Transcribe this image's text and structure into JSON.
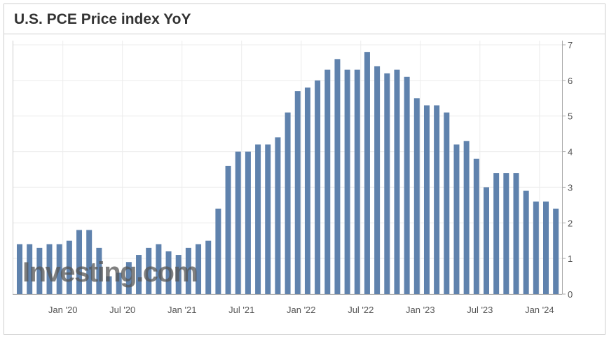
{
  "chart_data": {
    "type": "bar",
    "title": "U.S. PCE Price index YoY",
    "watermark": "Investing.com",
    "categories": [
      null,
      null,
      null,
      null,
      "Jan '20",
      null,
      null,
      null,
      null,
      null,
      "Jul '20",
      null,
      null,
      null,
      null,
      null,
      "Jan '21",
      null,
      null,
      null,
      null,
      null,
      "Jul '21",
      null,
      null,
      null,
      null,
      null,
      "Jan '22",
      null,
      null,
      null,
      null,
      null,
      "Jul '22",
      null,
      null,
      null,
      null,
      null,
      "Jan '23",
      null,
      null,
      null,
      null,
      null,
      "Jul '23",
      null,
      null,
      null,
      null,
      null,
      "Jan '24",
      null,
      null
    ],
    "values": [
      1.4,
      1.4,
      1.3,
      1.4,
      1.4,
      1.5,
      1.8,
      1.8,
      1.3,
      0.5,
      0.6,
      0.9,
      1.1,
      1.3,
      1.4,
      1.2,
      1.1,
      1.3,
      1.4,
      1.5,
      2.4,
      3.6,
      4.0,
      4.0,
      4.2,
      4.2,
      4.4,
      5.1,
      5.7,
      5.8,
      6.0,
      6.3,
      6.6,
      6.3,
      6.3,
      6.8,
      6.4,
      6.2,
      6.3,
      6.1,
      5.5,
      5.3,
      5.3,
      5.1,
      4.2,
      4.3,
      3.8,
      3.0,
      3.4,
      3.4,
      3.4,
      2.9,
      2.6,
      2.6,
      2.4
    ],
    "color": "#5f82ad",
    "ylim": [
      0,
      7
    ],
    "yticks": [
      0,
      1,
      2,
      3,
      4,
      5,
      6,
      7
    ],
    "grid": true
  }
}
